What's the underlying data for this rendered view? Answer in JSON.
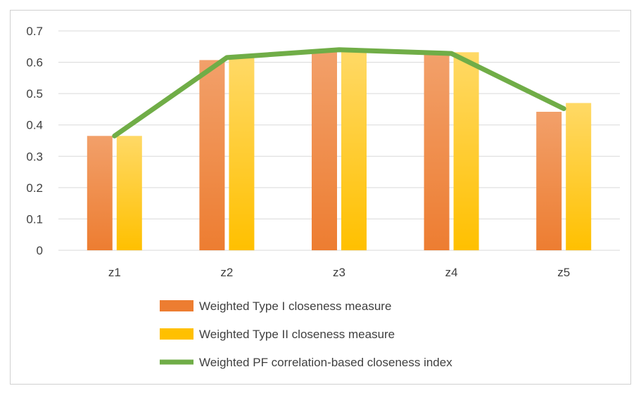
{
  "colors": {
    "series1": "#ed7d31",
    "series1_light": "#f2a06a",
    "series2": "#ffc000",
    "series2_light": "#ffd966",
    "line": "#70ad47",
    "grid": "#d9d9d9",
    "text": "#404040"
  },
  "chart_data": {
    "type": "bar",
    "categories": [
      "z1",
      "z2",
      "z3",
      "z4",
      "z5"
    ],
    "series": [
      {
        "name": "Weighted Type I closeness measure",
        "type": "bar",
        "values": [
          0.365,
          0.607,
          0.632,
          0.625,
          0.442
        ]
      },
      {
        "name": "Weighted Type II closeness measure",
        "type": "bar",
        "values": [
          0.365,
          0.615,
          0.638,
          0.632,
          0.47
        ]
      },
      {
        "name": "Weighted PF correlation-based closeness index",
        "type": "line",
        "values": [
          0.365,
          0.615,
          0.64,
          0.628,
          0.452
        ]
      }
    ],
    "y_ticks": [
      "0",
      "0.1",
      "0.2",
      "0.3",
      "0.4",
      "0.5",
      "0.6",
      "0.7"
    ],
    "ylim": [
      0,
      0.7
    ],
    "grid": true,
    "legend_position": "bottom"
  }
}
